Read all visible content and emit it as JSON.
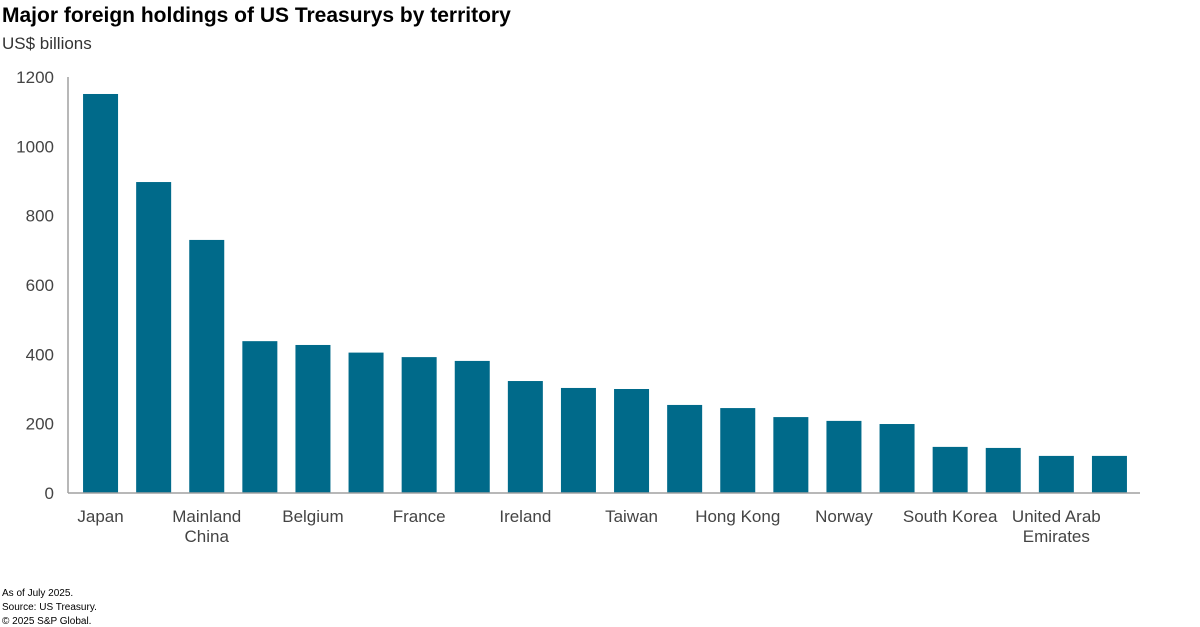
{
  "chart_data": {
    "type": "bar",
    "title": "Major foreign holdings of US Treasurys by territory",
    "ylabel": "US$ billions",
    "xlabel": "",
    "categories": [
      "Japan",
      "",
      "Mainland China",
      "",
      "Belgium",
      "",
      "France",
      "",
      "Ireland",
      "",
      "Taiwan",
      "",
      "Hong Kong",
      "",
      "Norway",
      "",
      "South Korea",
      "",
      "United Arab Emirates",
      ""
    ],
    "values": [
      1151,
      897,
      730,
      438,
      427,
      405,
      392,
      381,
      323,
      303,
      300,
      254,
      245,
      219,
      208,
      199,
      133,
      130,
      107,
      107
    ],
    "ylim": [
      0,
      1200
    ],
    "yticks": [
      0,
      200,
      400,
      600,
      800,
      1000,
      1200
    ],
    "grid": false,
    "bar_color": "#006A8A",
    "axis_color": "#A0A0A0"
  },
  "footnotes": [
    "As of July 2025.",
    "Source: US Treasury.",
    "© 2025 S&P Global."
  ]
}
